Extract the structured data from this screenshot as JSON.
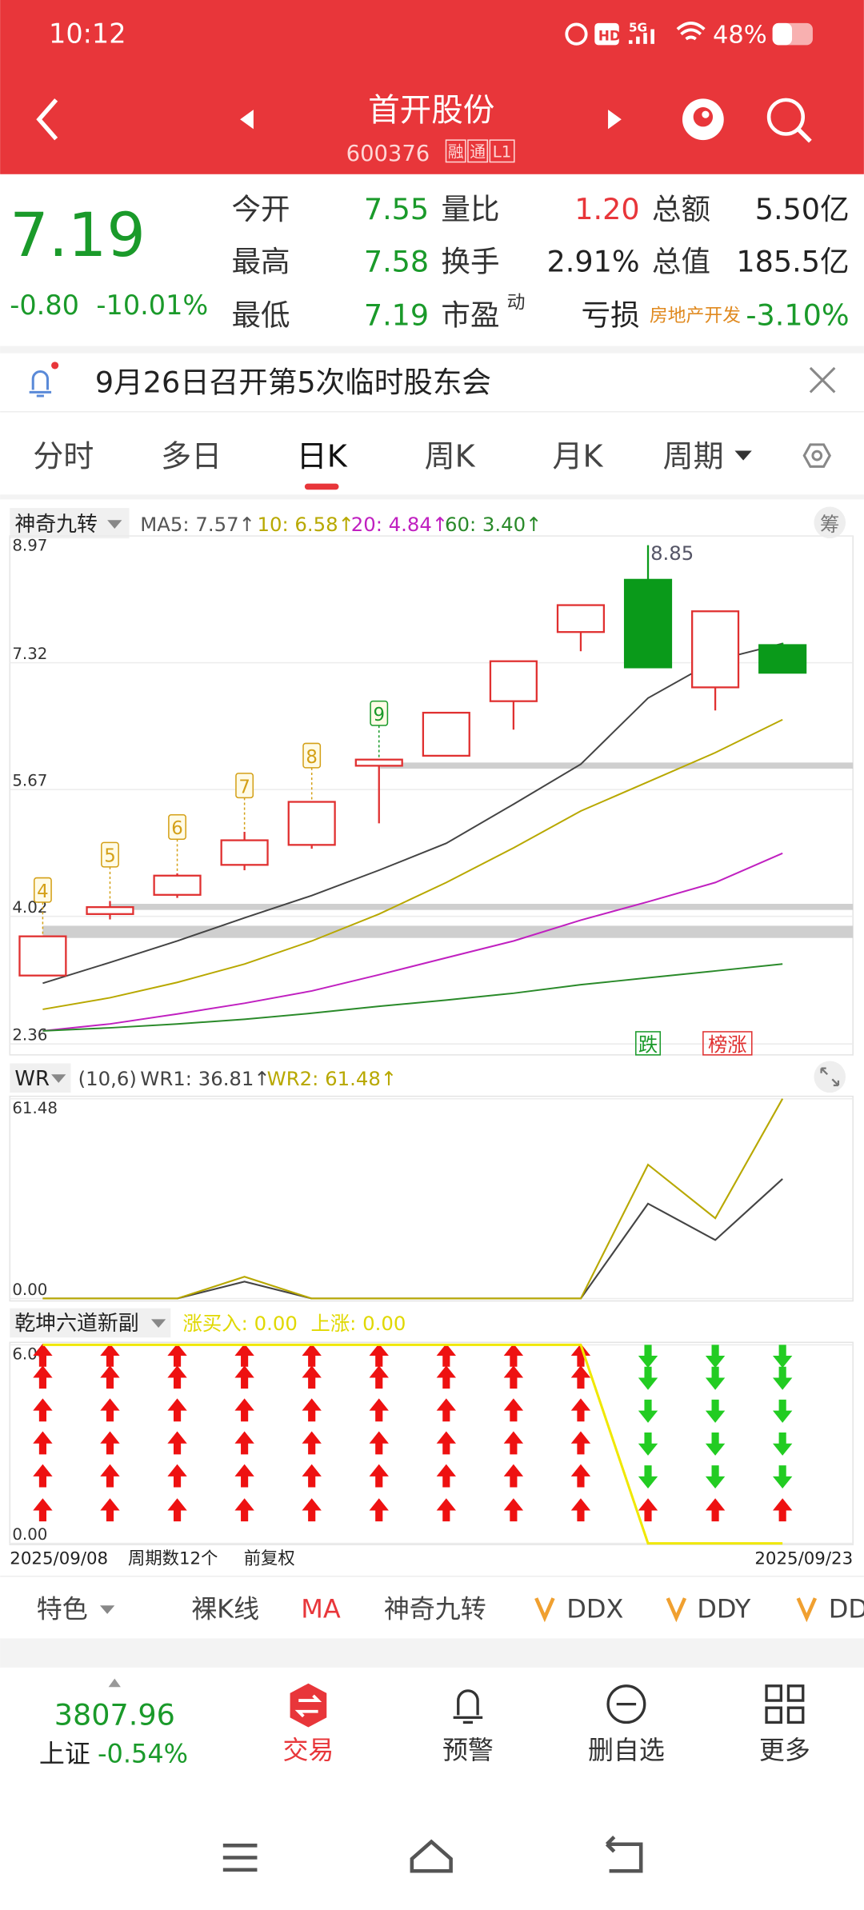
{
  "status_bar": {
    "time": "10:12",
    "network": "5G",
    "battery": "48%"
  },
  "header": {
    "title": "首开股份",
    "code": "600376",
    "badges": [
      "融",
      "通",
      "L1"
    ]
  },
  "quote": {
    "price": "7.19",
    "change": "-0.80",
    "change_pct": "-10.01%",
    "fields": [
      {
        "label": "今开",
        "value": "7.55"
      },
      {
        "label": "量比",
        "value": "1.20"
      },
      {
        "label": "总额",
        "value": "5.50亿"
      },
      {
        "label": "最高",
        "value": "7.58"
      },
      {
        "label": "换手",
        "value": "2.91%"
      },
      {
        "label": "总值",
        "value": "185.5亿"
      },
      {
        "label": "最低",
        "value": "7.19"
      },
      {
        "label": "市盈",
        "sup": "动",
        "value": "亏损"
      },
      {
        "label": "房地产开发",
        "value": "-3.10%"
      }
    ]
  },
  "notice": "9月26日召开第5次临时股东会",
  "tabs": [
    "分时",
    "多日",
    "日K",
    "周K",
    "月K",
    "周期"
  ],
  "selected_tab": 2,
  "kline": {
    "indicator": "神奇九转",
    "ma_labels": [
      "MA5: 7.57↑",
      "10: 6.58↑",
      "20: 4.84↑",
      "60: 3.40↑"
    ],
    "chip": "筹",
    "ylim": [
      2.36,
      8.97
    ],
    "yticks": [
      8.97,
      7.32,
      5.67,
      4.02,
      2.36
    ],
    "candles": [
      {
        "open": 3.25,
        "high": 3.76,
        "low": 3.25,
        "close": 3.76
      },
      {
        "open": 4.05,
        "high": 4.22,
        "low": 3.98,
        "close": 4.14
      },
      {
        "open": 4.3,
        "high": 4.58,
        "low": 4.26,
        "close": 4.55
      },
      {
        "open": 4.69,
        "high": 5.12,
        "low": 4.62,
        "close": 5.01
      },
      {
        "open": 4.95,
        "high": 5.51,
        "low": 4.9,
        "close": 5.51
      },
      {
        "open": 5.98,
        "high": 6.06,
        "low": 5.23,
        "close": 6.06
      },
      {
        "open": 6.11,
        "high": 6.67,
        "low": 6.11,
        "close": 6.67
      },
      {
        "open": 6.82,
        "high": 7.34,
        "low": 6.45,
        "close": 7.34
      },
      {
        "open": 7.72,
        "high": 8.07,
        "low": 7.47,
        "close": 8.07
      },
      {
        "open": 8.4,
        "high": 8.85,
        "low": 7.26,
        "close": 7.26
      },
      {
        "open": 7.0,
        "high": 7.99,
        "low": 6.7,
        "close": 7.99
      },
      {
        "open": 7.55,
        "high": 7.58,
        "low": 7.19,
        "close": 7.19
      }
    ],
    "ma": [
      {
        "color": "#444444",
        "values": [
          3.15,
          3.42,
          3.7,
          4.0,
          4.29,
          4.62,
          4.97,
          5.48,
          6.0,
          6.86,
          7.35,
          7.57
        ]
      },
      {
        "color": "#b8a800",
        "values": [
          2.81,
          2.96,
          3.16,
          3.4,
          3.7,
          4.05,
          4.46,
          4.91,
          5.39,
          5.77,
          6.15,
          6.58
        ]
      },
      {
        "color": "#c020c0",
        "values": [
          2.53,
          2.62,
          2.75,
          2.89,
          3.05,
          3.26,
          3.48,
          3.7,
          3.97,
          4.21,
          4.46,
          4.84
        ]
      },
      {
        "color": "#2a8a2a",
        "values": [
          2.53,
          2.57,
          2.62,
          2.68,
          2.76,
          2.85,
          2.93,
          3.02,
          3.13,
          3.22,
          3.31,
          3.4
        ]
      }
    ],
    "nine_turn": [
      "4",
      "5",
      "6",
      "7",
      "8",
      "9"
    ],
    "tags": [
      "跌",
      "榜涨"
    ]
  },
  "wr": {
    "name": "WR",
    "params": "(10,6)",
    "labels": [
      "WR1: 36.81↑",
      "WR2: 61.48↑"
    ],
    "ylim": [
      0,
      61.48
    ],
    "yticks": [
      61.48,
      {
        "value": 0,
        "label": "0.00"
      }
    ],
    "series": [
      {
        "color": "#444444",
        "values": [
          0,
          0,
          0,
          5.2,
          0,
          0,
          0,
          0,
          0,
          29.2,
          18.0,
          36.81
        ]
      },
      {
        "color": "#b8a800",
        "values": [
          0,
          0,
          0,
          6.7,
          0,
          0,
          0,
          0,
          0,
          41.2,
          24.7,
          61.48
        ]
      }
    ]
  },
  "qk": {
    "name": "乾坤六道新副",
    "labels": [
      "涨买入: 0.00",
      "上涨: 0.00"
    ],
    "ylim": [
      0,
      6
    ],
    "yticks": [
      {
        "value": 6,
        "label": "6.00"
      },
      {
        "value": 0,
        "label": "0.00"
      }
    ],
    "color": "#f0e800",
    "values": [
      6,
      6,
      6,
      6,
      6,
      6,
      6,
      6,
      6,
      0,
      0,
      0
    ]
  },
  "footer": {
    "start": "2025/09/08",
    "periods": "周期数12个",
    "adjust": "前复权",
    "end": "2025/09/23"
  },
  "toolbar": [
    "特色",
    "裸K线",
    "MA",
    "神奇九转",
    "DDX",
    "DDY",
    "DD"
  ],
  "market": {
    "index": "3807.96",
    "name": "上证",
    "change": "-0.54%"
  },
  "nav": [
    "交易",
    "预警",
    "删自选",
    "更多"
  ]
}
